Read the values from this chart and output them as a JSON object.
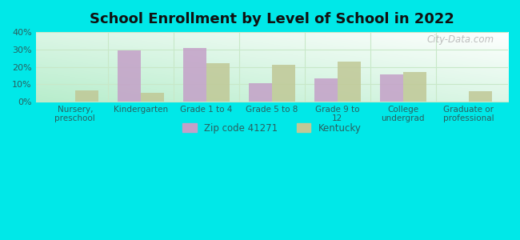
{
  "title": "School Enrollment by Level of School in 2022",
  "categories": [
    "Nursery,\npreschool",
    "Kindergarten",
    "Grade 1 to 4",
    "Grade 5 to 8",
    "Grade 9 to\n12",
    "College\nundergrad",
    "Graduate or\nprofessional"
  ],
  "zip_values": [
    0,
    29.5,
    31.0,
    10.5,
    13.5,
    15.5,
    0
  ],
  "ky_values": [
    6.5,
    5.0,
    22.0,
    21.0,
    23.0,
    17.0,
    6.0
  ],
  "zip_color": "#c4a0c8",
  "ky_color": "#c0c896",
  "background_color": "#00e8e8",
  "ylim": [
    0,
    40
  ],
  "yticks": [
    0,
    10,
    20,
    30,
    40
  ],
  "zip_label": "Zip code 41271",
  "ky_label": "Kentucky",
  "watermark": "City-Data.com",
  "bar_width": 0.35,
  "grid_color": "#c8e8c8",
  "spine_color": "#c8e8c8"
}
